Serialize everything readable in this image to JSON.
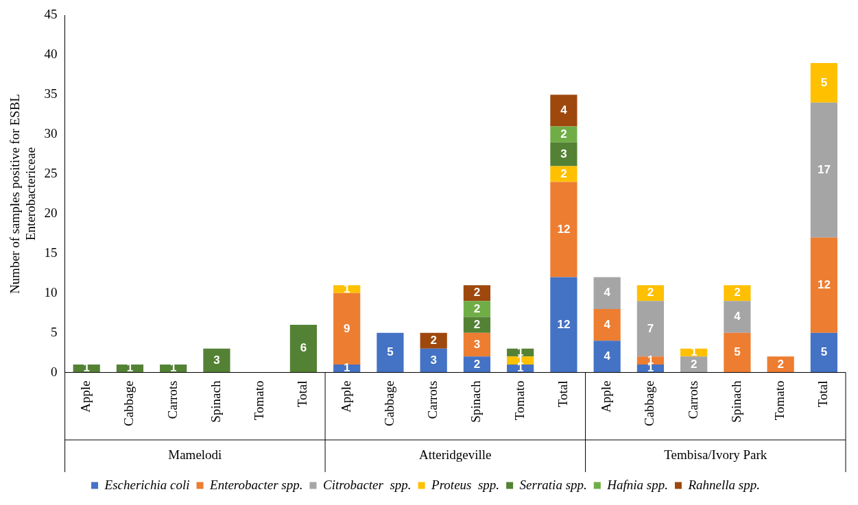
{
  "chart_data": {
    "type": "bar",
    "stacked": true,
    "ylabel": "Number of samples positive for ESBL Enterobactericeae",
    "categories": [
      "Apple",
      "Cabbage",
      "Carrots",
      "Spinach",
      "Tomato",
      "Total",
      "Apple",
      "Cabbage",
      "Carrots",
      "Spinach",
      "Tomato",
      "Total",
      "Apple",
      "Cabbage",
      "Carrots",
      "Spinach",
      "Tomato",
      "Total"
    ],
    "annotations": [
      "Mamelodi",
      "Atteridgeville",
      "Tembisa/Ivory Park"
    ],
    "series": [
      {
        "name": "Escherichia coli",
        "color": "#4472c4",
        "values": [
          null,
          null,
          null,
          null,
          null,
          null,
          1,
          5,
          3,
          2,
          1,
          12,
          4,
          1,
          null,
          null,
          null,
          5
        ]
      },
      {
        "name": "Enterobacter spp.",
        "color": "#ed7d31",
        "values": [
          null,
          null,
          null,
          null,
          null,
          null,
          9,
          null,
          null,
          3,
          null,
          12,
          4,
          1,
          null,
          5,
          2,
          12
        ]
      },
      {
        "name": "Citrobacter  spp.",
        "color": "#a5a5a5",
        "values": [
          null,
          null,
          null,
          null,
          null,
          null,
          null,
          null,
          null,
          null,
          null,
          null,
          4,
          7,
          2,
          4,
          null,
          17
        ]
      },
      {
        "name": "Proteus  spp.",
        "color": "#ffc000",
        "values": [
          null,
          null,
          null,
          null,
          null,
          null,
          1,
          null,
          null,
          null,
          1,
          2,
          null,
          2,
          1,
          2,
          null,
          5
        ]
      },
      {
        "name": "Serratia spp.",
        "color": "#548235",
        "values": [
          1,
          1,
          1,
          3,
          null,
          6,
          null,
          null,
          null,
          2,
          1,
          3,
          null,
          null,
          null,
          null,
          null,
          null
        ]
      },
      {
        "name": "Hafnia spp.",
        "color": "#70ad47",
        "values": [
          null,
          null,
          null,
          null,
          null,
          null,
          null,
          null,
          null,
          2,
          null,
          2,
          null,
          null,
          null,
          null,
          null,
          null
        ]
      },
      {
        "name": "Rahnella spp.",
        "color": "#9e480e",
        "values": [
          null,
          null,
          null,
          null,
          null,
          null,
          null,
          null,
          2,
          2,
          null,
          4,
          null,
          null,
          null,
          null,
          null,
          null
        ]
      }
    ],
    "ylim": [
      0,
      45
    ],
    "yticks": [
      0,
      5,
      10,
      15,
      20,
      25,
      30,
      35,
      40,
      45
    ],
    "grid": false,
    "data_labels": true,
    "legend": "bottom"
  }
}
